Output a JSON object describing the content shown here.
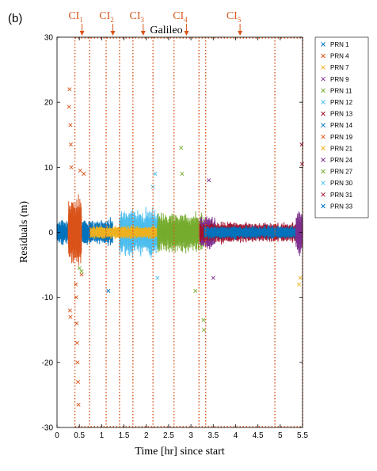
{
  "panel_label": "(b)",
  "chart_data": {
    "type": "scatter",
    "title": "Galileo",
    "xlabel": "Time [hr] since start",
    "ylabel": "Residuals (m)",
    "xlim": [
      0,
      5.5
    ],
    "ylim": [
      -30,
      30
    ],
    "xticks": [
      0,
      0.5,
      1,
      1.5,
      2,
      2.5,
      3,
      3.5,
      4,
      4.5,
      5,
      5.5
    ],
    "xtick_labels": [
      "0",
      "0.5",
      "1",
      "1.5",
      "2",
      "2.5",
      "3",
      "3.5",
      "4",
      "4.5",
      "5",
      "5.5"
    ],
    "yticks": [
      -30,
      -20,
      -10,
      0,
      10,
      20,
      30
    ],
    "ytick_labels": [
      "-30",
      "-20",
      "-10",
      "0",
      "10",
      "20",
      "30"
    ],
    "grid": false,
    "legend_position": "right-top",
    "marker": "x",
    "series": [
      {
        "name": "PRN 1",
        "color": "#0072BD"
      },
      {
        "name": "PRN 4",
        "color": "#D95319"
      },
      {
        "name": "PRN 7",
        "color": "#EDB120"
      },
      {
        "name": "PRN 9",
        "color": "#7E2F8E"
      },
      {
        "name": "PRN 11",
        "color": "#77AC30"
      },
      {
        "name": "PRN 12",
        "color": "#4DBEEE"
      },
      {
        "name": "PRN 13",
        "color": "#A2142F"
      },
      {
        "name": "PRN 14",
        "color": "#0072BD"
      },
      {
        "name": "PRN 19",
        "color": "#D95319"
      },
      {
        "name": "PRN 21",
        "color": "#EDB120"
      },
      {
        "name": "PRN 24",
        "color": "#7E2F8E"
      },
      {
        "name": "PRN 27",
        "color": "#77AC30"
      },
      {
        "name": "PRN 30",
        "color": "#4DBEEE"
      },
      {
        "name": "PRN 31",
        "color": "#A2142F"
      },
      {
        "name": "PRN 33",
        "color": "#0072BD"
      }
    ],
    "ci_color": "#D95319",
    "ci_boundaries": [
      0.4,
      0.73,
      1.1,
      1.4,
      1.7,
      2.15,
      2.62,
      3.18,
      3.33,
      4.88,
      5.5
    ],
    "ci_annotations": [
      {
        "label": "CI",
        "sub": "1",
        "x": 0.56
      },
      {
        "label": "CI",
        "sub": "2",
        "x": 1.25
      },
      {
        "label": "CI",
        "sub": "3",
        "x": 1.93
      },
      {
        "label": "CI",
        "sub": "4",
        "x": 2.9
      },
      {
        "label": "CI",
        "sub": "5",
        "x": 4.1
      }
    ],
    "residual_bands": [
      {
        "series": "PRN 1",
        "x0": 0.0,
        "x1": 1.25,
        "amp": 2.2
      },
      {
        "series": "PRN 4",
        "x0": 0.25,
        "x1": 0.55,
        "amp": 6
      },
      {
        "series": "PRN 12",
        "x0": 1.4,
        "x1": 2.3,
        "amp": 4
      },
      {
        "series": "PRN 7",
        "x0": 0.75,
        "x1": 3.1,
        "amp": 1.2
      },
      {
        "series": "PRN 11",
        "x0": 2.25,
        "x1": 3.3,
        "amp": 3.5
      },
      {
        "series": "PRN 9",
        "x0": 3.2,
        "x1": 3.55,
        "amp": 3
      },
      {
        "series": "PRN 13",
        "x0": 3.2,
        "x1": 5.5,
        "amp": 1.8
      },
      {
        "series": "PRN 14",
        "x0": 3.3,
        "x1": 5.5,
        "amp": 1.2
      },
      {
        "series": "PRN 24",
        "x0": 5.35,
        "x1": 5.5,
        "amp": 4
      }
    ],
    "outliers": [
      {
        "series": "PRN 4",
        "x": 0.28,
        "y": 22
      },
      {
        "series": "PRN 4",
        "x": 0.27,
        "y": 19.3
      },
      {
        "series": "PRN 4",
        "x": 0.3,
        "y": 16.5
      },
      {
        "series": "PRN 4",
        "x": 0.31,
        "y": 13.5
      },
      {
        "series": "PRN 4",
        "x": 0.32,
        "y": 10
      },
      {
        "series": "PRN 4",
        "x": 0.42,
        "y": -8
      },
      {
        "series": "PRN 4",
        "x": 0.43,
        "y": -10
      },
      {
        "series": "PRN 4",
        "x": 0.44,
        "y": -14
      },
      {
        "series": "PRN 4",
        "x": 0.45,
        "y": -17
      },
      {
        "series": "PRN 4",
        "x": 0.46,
        "y": -20
      },
      {
        "series": "PRN 4",
        "x": 0.47,
        "y": -23
      },
      {
        "series": "PRN 4",
        "x": 0.48,
        "y": -26.5
      },
      {
        "series": "PRN 4",
        "x": 0.29,
        "y": -12
      },
      {
        "series": "PRN 4",
        "x": 0.3,
        "y": -13
      },
      {
        "series": "PRN 4",
        "x": 0.55,
        "y": -6.5
      },
      {
        "series": "PRN 19",
        "x": 0.52,
        "y": 9.5
      },
      {
        "series": "PRN 19",
        "x": 0.6,
        "y": 9
      },
      {
        "series": "PRN 1",
        "x": 1.15,
        "y": -9
      },
      {
        "series": "PRN 11",
        "x": 0.5,
        "y": -5.5
      },
      {
        "series": "PRN 11",
        "x": 0.55,
        "y": -6
      },
      {
        "series": "PRN 11",
        "x": 3.28,
        "y": -13.5
      },
      {
        "series": "PRN 11",
        "x": 3.29,
        "y": -15
      },
      {
        "series": "PRN 11",
        "x": 3.1,
        "y": -9
      },
      {
        "series": "PRN 11",
        "x": 2.78,
        "y": 13
      },
      {
        "series": "PRN 11",
        "x": 2.8,
        "y": 9
      },
      {
        "series": "PRN 12",
        "x": 2.2,
        "y": 9
      },
      {
        "series": "PRN 12",
        "x": 2.15,
        "y": 7
      },
      {
        "series": "PRN 12",
        "x": 2.25,
        "y": -7
      },
      {
        "series": "PRN 9",
        "x": 3.4,
        "y": 8
      },
      {
        "series": "PRN 9",
        "x": 3.5,
        "y": -7
      },
      {
        "series": "PRN 13",
        "x": 5.48,
        "y": 13.5
      },
      {
        "series": "PRN 13",
        "x": 5.49,
        "y": 10.5
      },
      {
        "series": "PRN 7",
        "x": 5.45,
        "y": -7
      },
      {
        "series": "PRN 7",
        "x": 5.42,
        "y": -8
      }
    ]
  }
}
